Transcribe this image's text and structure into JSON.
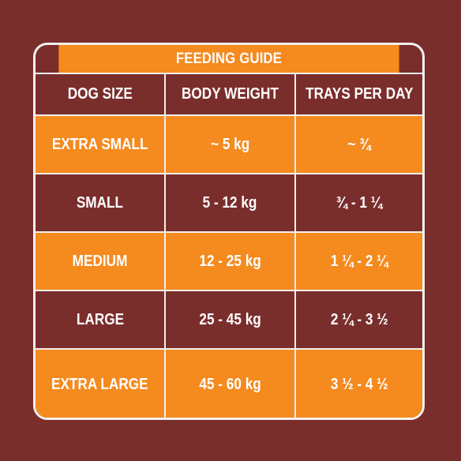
{
  "title": "FEEDING GUIDE",
  "headers": [
    "DOG SIZE",
    "BODY WEIGHT",
    "TRAYS PER DAY"
  ],
  "rows": [
    {
      "size": "EXTRA SMALL",
      "weight": "~ 5 kg",
      "trays": "~ ¾"
    },
    {
      "size": "SMALL",
      "weight": "5 - 12 kg",
      "trays": "¾ - 1 ¼"
    },
    {
      "size": "MEDIUM",
      "weight": "12 - 25 kg",
      "trays": "1 ¼ - 2 ¼"
    },
    {
      "size": "LARGE",
      "weight": "25 - 45 kg",
      "trays": "2 ¼ - 3 ½"
    },
    {
      "size": "EXTRA LARGE",
      "weight": "45 - 60 kg",
      "trays": "3 ½ - 4 ½"
    }
  ],
  "colors": {
    "background": "#7a2e2c",
    "accent": "#f58a1f",
    "border": "#f2f0ec",
    "text": "#ffffff"
  }
}
